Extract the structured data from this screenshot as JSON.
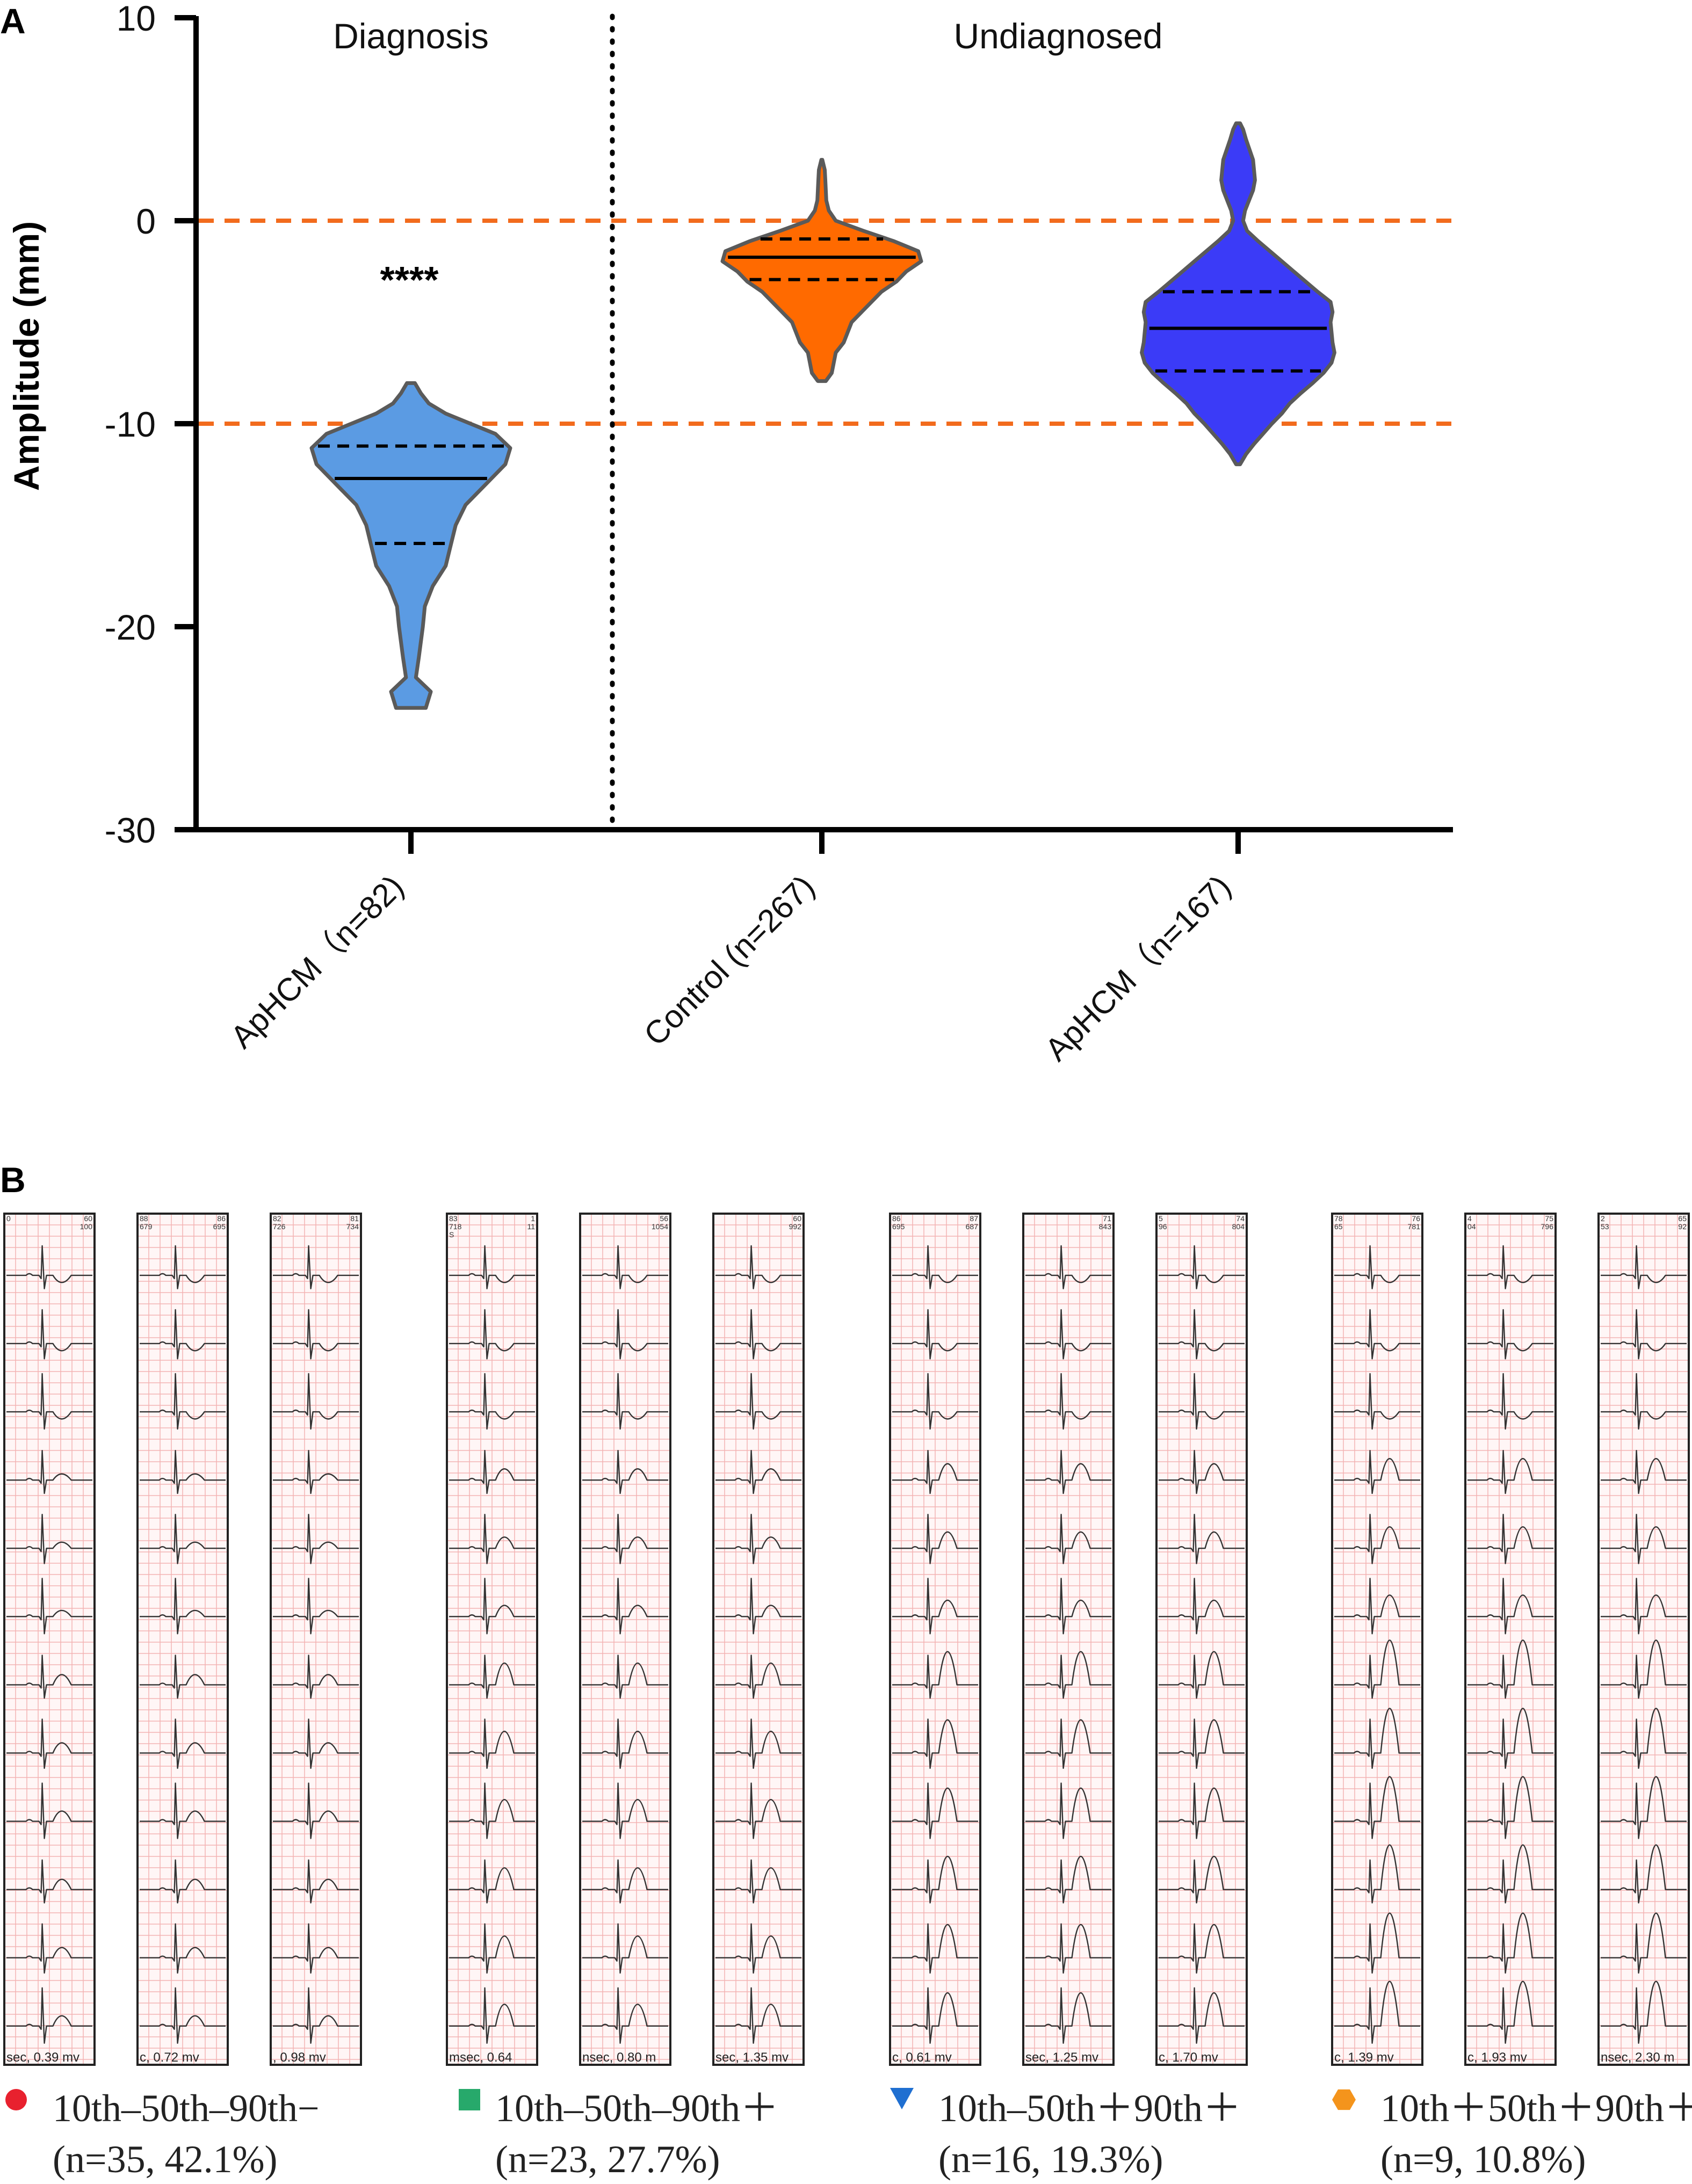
{
  "chart_data": {
    "type": "violin",
    "panel_label": "A",
    "ylabel": "Amplitude (mm)",
    "ylim": [
      -30,
      10
    ],
    "yticks": [
      "10",
      "0",
      "-10",
      "-20",
      "-30"
    ],
    "reference_lines": [
      0,
      -10
    ],
    "group_headers": [
      "Diagnosis",
      "Undiagnosed"
    ],
    "significance": "****",
    "categories": [
      "ApHCM（n=82)",
      "Control (n=267)",
      "ApHCM（n=167)"
    ],
    "series": [
      {
        "name": "ApHCM（n=82)",
        "color": "#5b9be3",
        "min": -24,
        "max": -8,
        "q1": -15.9,
        "median": -12.7,
        "q3": -11.1,
        "profile": [
          [
            -24,
            0.15
          ],
          [
            -23.2,
            0.2
          ],
          [
            -22.5,
            0.05
          ],
          [
            -21.5,
            0.08
          ],
          [
            -20,
            0.12
          ],
          [
            -19,
            0.14
          ],
          [
            -18,
            0.22
          ],
          [
            -17,
            0.35
          ],
          [
            -16,
            0.4
          ],
          [
            -15,
            0.45
          ],
          [
            -14,
            0.55
          ],
          [
            -13,
            0.75
          ],
          [
            -12,
            0.95
          ],
          [
            -11.2,
            1.0
          ],
          [
            -10.5,
            0.85
          ],
          [
            -10,
            0.6
          ],
          [
            -9.5,
            0.35
          ],
          [
            -9,
            0.18
          ],
          [
            -8.5,
            0.1
          ],
          [
            -8,
            0.04
          ]
        ]
      },
      {
        "name": "Control (n=267)",
        "color": "#ff6a00",
        "min": -7.9,
        "max": 3.0,
        "q1": -2.9,
        "median": -1.8,
        "q3": -0.9,
        "profile": [
          [
            -7.9,
            0.04
          ],
          [
            -7.5,
            0.1
          ],
          [
            -7,
            0.12
          ],
          [
            -6.5,
            0.14
          ],
          [
            -6,
            0.22
          ],
          [
            -5.5,
            0.26
          ],
          [
            -5,
            0.3
          ],
          [
            -4.5,
            0.4
          ],
          [
            -4,
            0.5
          ],
          [
            -3.5,
            0.6
          ],
          [
            -3,
            0.75
          ],
          [
            -2.5,
            0.85
          ],
          [
            -2,
            1.0
          ],
          [
            -1.5,
            0.97
          ],
          [
            -1,
            0.72
          ],
          [
            -0.5,
            0.42
          ],
          [
            0,
            0.14
          ],
          [
            0.5,
            0.07
          ],
          [
            1,
            0.045
          ],
          [
            1.5,
            0.04
          ],
          [
            2,
            0.035
          ],
          [
            2.5,
            0.03
          ],
          [
            3,
            0.005
          ]
        ]
      },
      {
        "name": "ApHCM（n=167)",
        "color": "#3b3bf7",
        "min": -12,
        "max": 4.8,
        "q1": -7.4,
        "median": -5.3,
        "q3": -3.5,
        "profile": [
          [
            -12,
            0.02
          ],
          [
            -11.5,
            0.08
          ],
          [
            -11,
            0.16
          ],
          [
            -10.5,
            0.25
          ],
          [
            -10,
            0.34
          ],
          [
            -9.5,
            0.44
          ],
          [
            -9,
            0.52
          ],
          [
            -8.5,
            0.63
          ],
          [
            -8,
            0.75
          ],
          [
            -7.5,
            0.86
          ],
          [
            -7,
            0.94
          ],
          [
            -6.5,
            0.97
          ],
          [
            -6,
            0.95
          ],
          [
            -5,
            0.93
          ],
          [
            -4.5,
            0.95
          ],
          [
            -4,
            0.93
          ],
          [
            -3.5,
            0.8
          ],
          [
            -3,
            0.68
          ],
          [
            -2.5,
            0.56
          ],
          [
            -2,
            0.44
          ],
          [
            -1.5,
            0.32
          ],
          [
            -1,
            0.2
          ],
          [
            -0.5,
            0.09
          ],
          [
            0,
            0.05
          ],
          [
            0.5,
            0.07
          ],
          [
            1,
            0.11
          ],
          [
            1.5,
            0.15
          ],
          [
            2,
            0.17
          ],
          [
            3,
            0.15
          ],
          [
            4,
            0.08
          ],
          [
            4.5,
            0.05
          ],
          [
            4.8,
            0.02
          ]
        ]
      }
    ]
  },
  "panel_b": {
    "label": "B",
    "groups": [
      {
        "legend_marker": "circle",
        "legend_color": "#e8212e",
        "legend_line1": "10th–50th–90th−",
        "legend_line2": "(n=35, 42.1%)",
        "strips": [
          {
            "header_left": "0",
            "header_right": "60\n100",
            "footer": "sec,  0.39 mv",
            "pattern": "neg"
          },
          {
            "header_left": "88\n679",
            "header_right": "86\n695",
            "footer": "c,  0.72 mv",
            "pattern": "neg"
          },
          {
            "header_left": "82\n726",
            "header_right": "81\n734",
            "footer": ",  0.98 mv",
            "pattern": "neg"
          }
        ]
      },
      {
        "legend_marker": "square",
        "legend_color": "#27a96b",
        "legend_line1": "10th–50th–90th＋",
        "legend_line2": "(n=23, 27.7%)",
        "strips": [
          {
            "header_left": "83\n718\nS",
            "header_right": "1\n11",
            "footer": "msec,  0.64",
            "pattern": "mid"
          },
          {
            "header_left": "",
            "header_right": "56\n1054",
            "footer": "nsec,  0.80 m",
            "pattern": "mid"
          },
          {
            "header_left": "",
            "header_right": "60\n992",
            "footer": "sec,  1.35 mv",
            "pattern": "mid"
          }
        ]
      },
      {
        "legend_marker": "triangle",
        "legend_color": "#1f6fd1",
        "legend_line1": "10th–50th＋90th＋",
        "legend_line2": "(n=16, 19.3%)",
        "strips": [
          {
            "header_left": "86\n695",
            "header_right": "87\n687",
            "footer": "c,  0.61 mv",
            "pattern": "deep"
          },
          {
            "header_left": "",
            "header_right": "71\n843",
            "footer": "sec,  1.25 mv",
            "pattern": "deep"
          },
          {
            "header_left": "5\n96",
            "header_right": "74\n804",
            "footer": "c,  1.70 mv",
            "pattern": "deep"
          }
        ]
      },
      {
        "legend_marker": "hexagon",
        "legend_color": "#f4941c",
        "legend_line1": "10th＋50th＋90th＋",
        "legend_line2": "(n=9, 10.8%)",
        "strips": [
          {
            "header_left": "78\n65",
            "header_right": "76\n781",
            "footer": "c,  1.39 mv",
            "pattern": "giant"
          },
          {
            "header_left": "4\n04",
            "header_right": "75\n796",
            "footer": "c,  1.93 mv",
            "pattern": "giant"
          },
          {
            "header_left": "2\n53",
            "header_right": "65\n92",
            "footer": "nsec,  2.30 m",
            "pattern": "giant"
          }
        ]
      }
    ]
  }
}
